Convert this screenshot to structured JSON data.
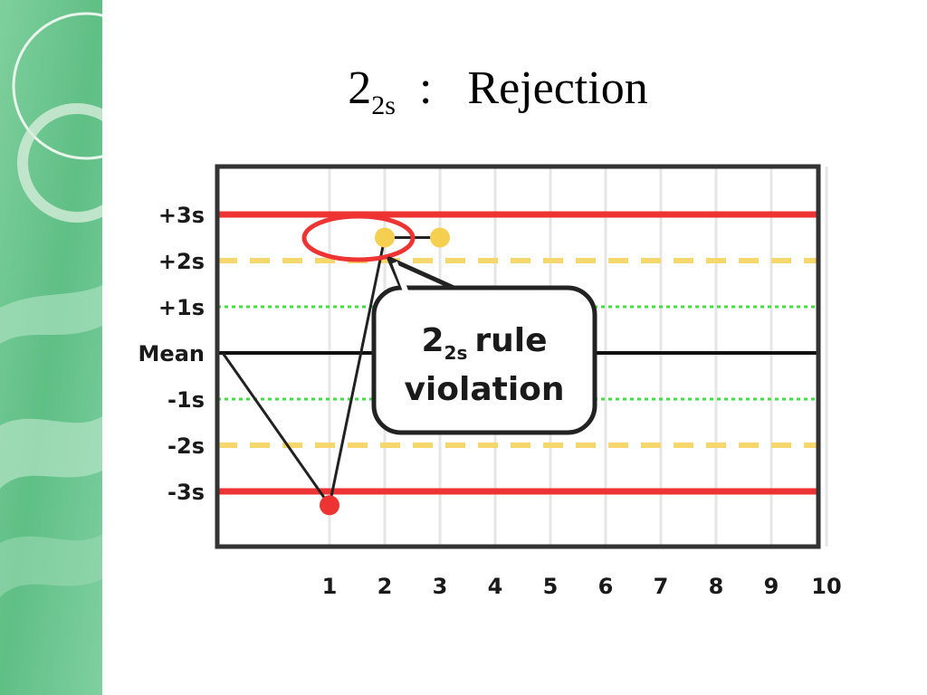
{
  "slide": {
    "title_main": "2",
    "title_sub": "2s",
    "title_rest": "  :   Rejection"
  },
  "colors": {
    "sidebar_green": "#6cc38f",
    "limit_3s": "#ee3333",
    "limit_2s": "#f5d76e",
    "limit_1s": "#44dd44",
    "point_ok": "#f5d050",
    "point_bad": "#ee3333",
    "mean_line": "#111111"
  },
  "callout": {
    "line1_main": "2",
    "line1_sub": "2s",
    "line1_rest": "rule",
    "line2": "violation"
  },
  "chart_data": {
    "type": "line",
    "title": "",
    "xlabel": "",
    "ylabel": "",
    "x_ticks": [
      "1",
      "2",
      "3",
      "4",
      "5",
      "6",
      "7",
      "8",
      "9",
      "10"
    ],
    "y_ticks": [
      "+3s",
      "+2s",
      "+1s",
      "Mean",
      "-1s",
      "-2s",
      "-3s"
    ],
    "y_tick_values": [
      3,
      2,
      1,
      0,
      -1,
      -2,
      -3
    ],
    "ylim": [
      -4,
      4
    ],
    "xlim": [
      0,
      11
    ],
    "grid": true,
    "reference_lines": [
      {
        "label": "+3s",
        "value": 3,
        "style": "solid",
        "color": "#ee3333"
      },
      {
        "label": "+2s",
        "value": 2,
        "style": "dashed",
        "color": "#f5d76e"
      },
      {
        "label": "+1s",
        "value": 1,
        "style": "dotted",
        "color": "#44dd44"
      },
      {
        "label": "Mean",
        "value": 0,
        "style": "solid",
        "color": "#111111"
      },
      {
        "label": "-1s",
        "value": -1,
        "style": "dotted",
        "color": "#44dd44"
      },
      {
        "label": "-2s",
        "value": -2,
        "style": "dashed",
        "color": "#f5d76e"
      },
      {
        "label": "-3s",
        "value": -3,
        "style": "solid",
        "color": "#ee3333"
      }
    ],
    "series": [
      {
        "points": [
          {
            "x": 0,
            "y": 0
          },
          {
            "x": 1,
            "y": -3.3
          },
          {
            "x": 2,
            "y": 2.5
          },
          {
            "x": 3,
            "y": 2.5
          }
        ]
      }
    ],
    "annotation": "2 2s rule violation"
  }
}
